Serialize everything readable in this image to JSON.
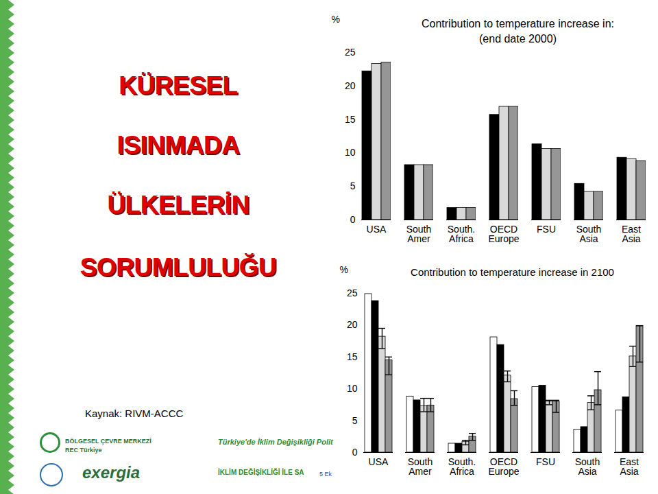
{
  "slide": {
    "title_lines": [
      "KÜRESEL",
      "ISINMADA",
      "ÜLKELERİN",
      "SORUMLULUĞU"
    ],
    "source": "Kaynak: RIVM-ACCC",
    "logos": [
      "BÖLGESEL ÇEVRE MERKEZİ",
      "REC Türkiye",
      "exergia"
    ],
    "footer": [
      "Türkiye'de İklim Değişikliği Polit",
      "İKLİM DEĞİŞİKLİĞİ İLE SA",
      "5 Ek"
    ]
  },
  "chart_data": [
    {
      "type": "bar",
      "title": "Contribution to temperature increase in:",
      "subtitle": "(end date 2000)",
      "ylabel": "%",
      "categories": [
        "USA",
        "South\nAmer",
        "South.\nAfrica",
        "OECD\nEurope",
        "FSU",
        "South\nAsia",
        "East\nAsia"
      ],
      "series": [
        {
          "color": "#000000",
          "values": [
            22.2,
            8.2,
            1.8,
            15.7,
            11.3,
            5.4,
            9.3
          ]
        },
        {
          "color": "#d9d9d9",
          "values": [
            23.3,
            8.2,
            1.8,
            16.9,
            10.6,
            4.2,
            9.1
          ]
        },
        {
          "color": "#969696",
          "values": [
            23.5,
            8.2,
            1.8,
            16.9,
            10.6,
            4.2,
            8.8
          ]
        }
      ],
      "ylim": [
        0,
        25
      ],
      "yticks": [
        0,
        5,
        10,
        15,
        20,
        25
      ]
    },
    {
      "type": "bar",
      "title": "Contribution to temperature increase in 2100",
      "ylabel": "%",
      "categories": [
        "USA",
        "South\nAmer",
        "South.\nAfrica",
        "OECD\nEurope",
        "FSU",
        "South\nAsia",
        "East\nAsia"
      ],
      "series": [
        {
          "color": "#ffffff",
          "values": [
            24.9,
            8.8,
            1.4,
            18.1,
            10.3,
            3.6,
            6.6
          ]
        },
        {
          "color": "#000000",
          "values": [
            23.8,
            8.2,
            1.4,
            16.9,
            10.5,
            4.0,
            8.7
          ]
        },
        {
          "color": "#d9d9d9",
          "values": [
            18.2,
            7.3,
            1.7,
            12.1,
            8.0,
            7.8,
            15.1
          ],
          "error_low": [
            16.3,
            6.4,
            1.2,
            11.1,
            7.5,
            6.7,
            13.5
          ],
          "error_high": [
            19.5,
            8.5,
            1.9,
            12.8,
            8.2,
            8.9,
            16.7
          ]
        },
        {
          "color": "#969696",
          "values": [
            14.5,
            7.4,
            2.5,
            8.4,
            8.0,
            9.8,
            19.9
          ],
          "error_low": [
            12.2,
            6.4,
            1.9,
            7.4,
            6.3,
            7.5,
            14.2
          ],
          "error_high": [
            15.0,
            8.5,
            3.0,
            9.7,
            8.2,
            12.7,
            19.9
          ]
        }
      ],
      "ylim": [
        0,
        25
      ],
      "yticks": [
        0,
        5,
        10,
        15,
        20,
        25
      ]
    }
  ]
}
